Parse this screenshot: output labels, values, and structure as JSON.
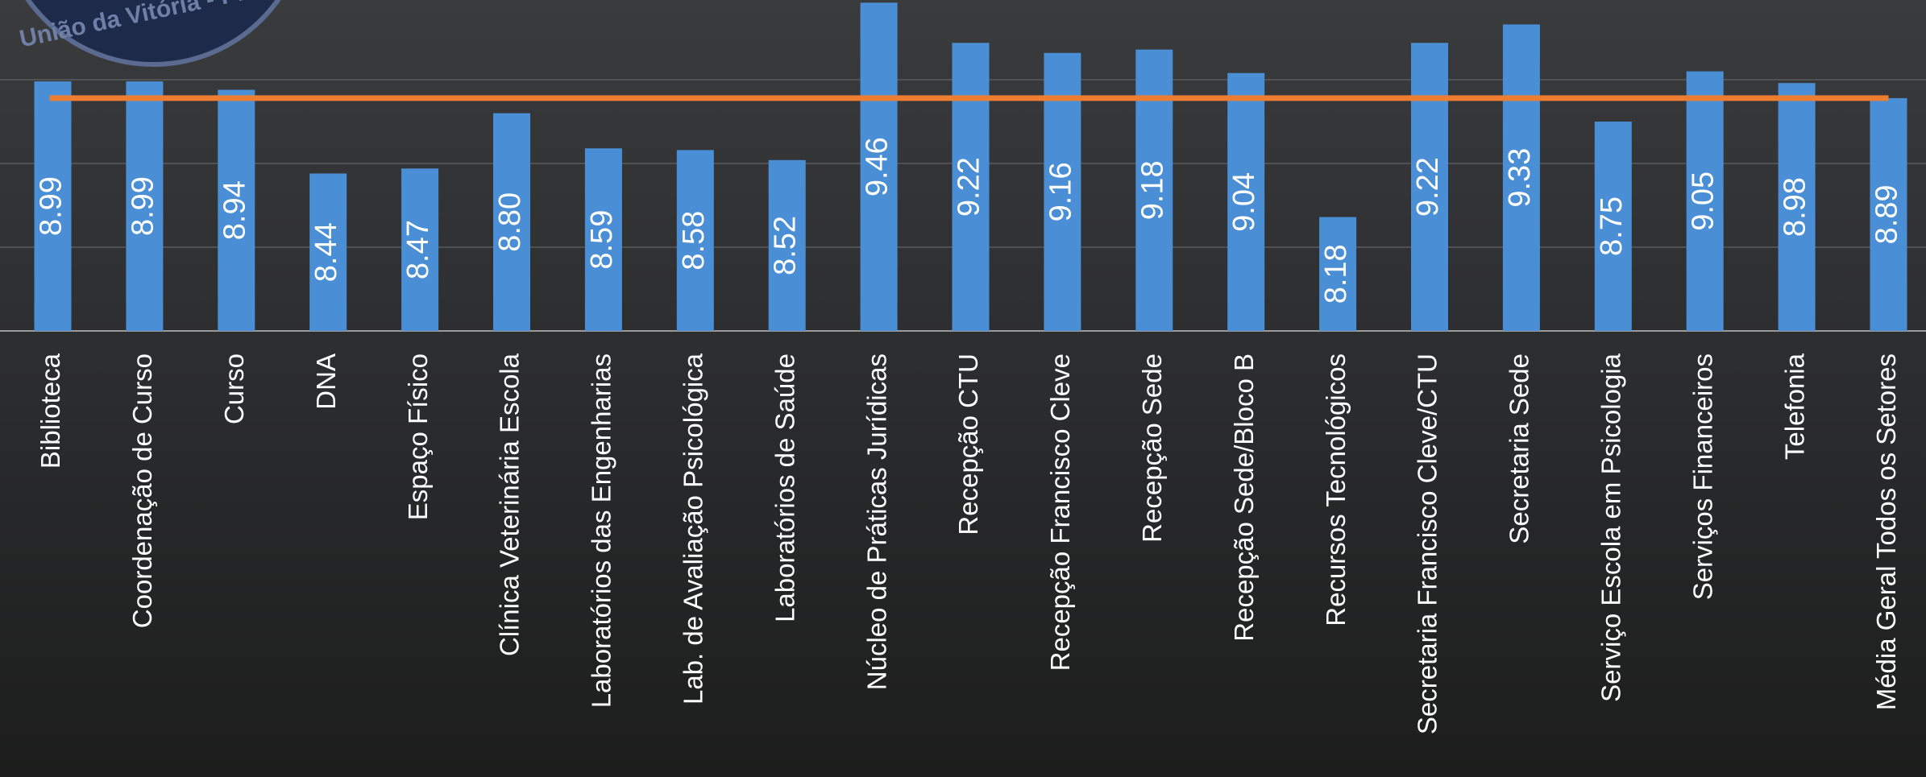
{
  "logo_text": "União da Vitória - PR",
  "chart_data": {
    "type": "bar",
    "categories": [
      "Biblioteca",
      "Coordenação de Curso",
      "Curso",
      "DNA",
      "Espaço Físico",
      "Clínica Veterinária Escola",
      "Laboratórios das Engenharias",
      "Lab. de Avaliação Psicológica",
      "Laboratórios de Saúde",
      "Núcleo de Práticas Jurídicas",
      "Recepção CTU",
      "Recepção Francisco Cleve",
      "Recepção Sede",
      "Recepção Sede/Bloco B",
      "Recursos Tecnológicos",
      "Secretaria Francisco Cleve/CTU",
      "Secretaria Sede",
      "Serviço Escola em Psicologia",
      "Serviços Financeiros",
      "Telefonia",
      "Média Geral Todos os Setores"
    ],
    "values": [
      8.99,
      8.99,
      8.94,
      8.44,
      8.47,
      8.8,
      8.59,
      8.58,
      8.52,
      9.46,
      9.22,
      9.16,
      9.18,
      9.04,
      8.18,
      9.22,
      9.33,
      8.75,
      9.05,
      8.98,
      8.89
    ],
    "value_labels": [
      "8.99",
      "8.99",
      "8.94",
      "8.44",
      "8.47",
      "8.80",
      "8.59",
      "8.58",
      "8.52",
      "9.46",
      "9.22",
      "9.16",
      "9.18",
      "9.04",
      "8.18",
      "9.22",
      "9.33",
      "8.75",
      "9.05",
      "8.98",
      "8.89"
    ],
    "color": "#4a8fd6",
    "reference_line": {
      "value": 8.89,
      "color": "#ed7d31"
    },
    "ylim": [
      7.5,
      9.5
    ],
    "yticks": [
      8,
      8.5,
      9
    ],
    "grid": true
  }
}
